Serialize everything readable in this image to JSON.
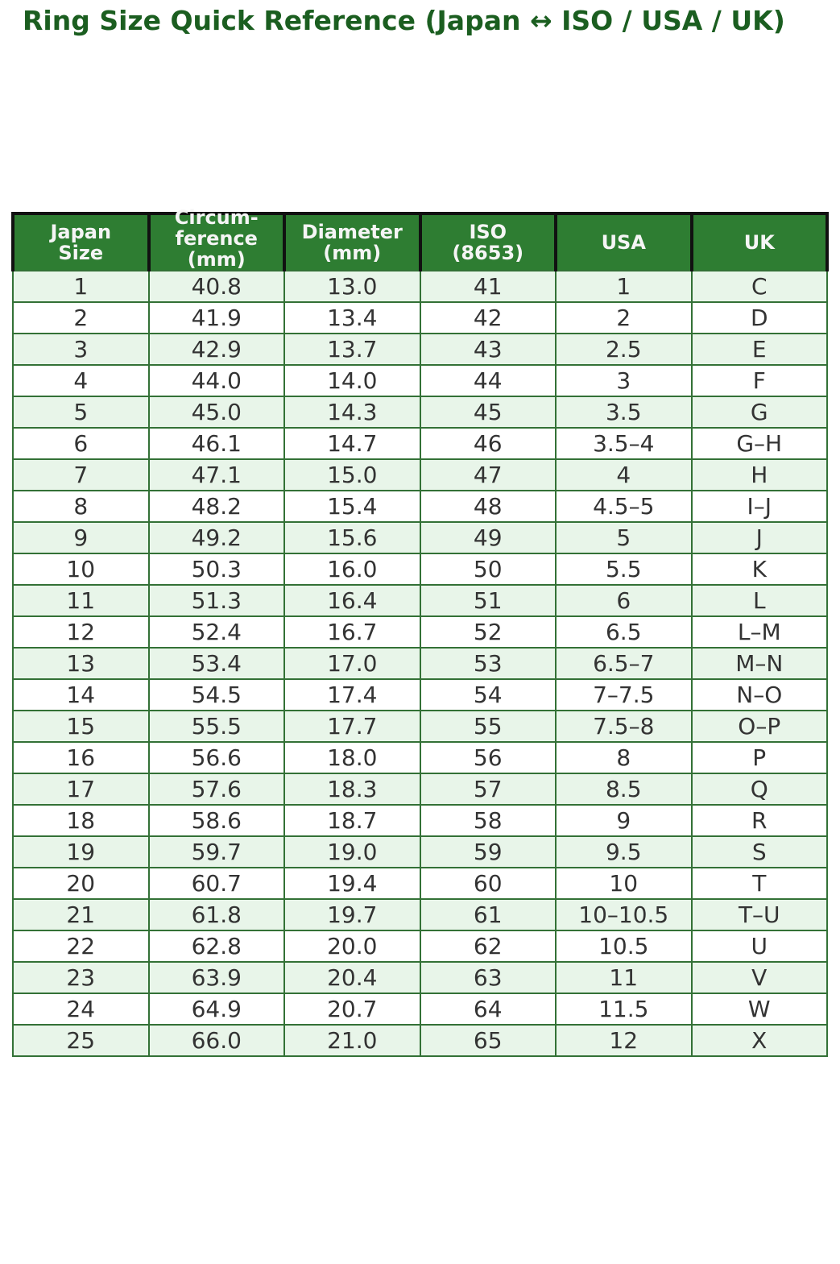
{
  "title": "Ring Size Quick Reference (Japan ↔ ISO / USA / UK)",
  "colors": {
    "title_text": "#1b5e20",
    "header_bg": "#2e7d32",
    "header_text": "#f5f5f5",
    "header_border": "#111111",
    "body_border": "#337136",
    "row_alt_bg": "#e8f5e9",
    "row_plain_bg": "#ffffff",
    "cell_text": "#333333"
  },
  "chart_data": {
    "type": "table",
    "title": "Ring Size Quick Reference (Japan ↔ ISO / USA / UK)",
    "columns": [
      "Japan Size",
      "Circum-ference (mm)",
      "Diameter (mm)",
      "ISO (8653)",
      "USA",
      "UK"
    ],
    "header_lines": [
      [
        "Japan",
        "Size"
      ],
      [
        "Circum-",
        "ference",
        "(mm)"
      ],
      [
        "Diameter",
        "(mm)"
      ],
      [
        "ISO",
        "(8653)"
      ],
      [
        "USA"
      ],
      [
        "UK"
      ]
    ],
    "rows": [
      [
        "1",
        "40.8",
        "13.0",
        "41",
        "1",
        "C"
      ],
      [
        "2",
        "41.9",
        "13.4",
        "42",
        "2",
        "D"
      ],
      [
        "3",
        "42.9",
        "13.7",
        "43",
        "2.5",
        "E"
      ],
      [
        "4",
        "44.0",
        "14.0",
        "44",
        "3",
        "F"
      ],
      [
        "5",
        "45.0",
        "14.3",
        "45",
        "3.5",
        "G"
      ],
      [
        "6",
        "46.1",
        "14.7",
        "46",
        "3.5–4",
        "G–H"
      ],
      [
        "7",
        "47.1",
        "15.0",
        "47",
        "4",
        "H"
      ],
      [
        "8",
        "48.2",
        "15.4",
        "48",
        "4.5–5",
        "I–J"
      ],
      [
        "9",
        "49.2",
        "15.6",
        "49",
        "5",
        "J"
      ],
      [
        "10",
        "50.3",
        "16.0",
        "50",
        "5.5",
        "K"
      ],
      [
        "11",
        "51.3",
        "16.4",
        "51",
        "6",
        "L"
      ],
      [
        "12",
        "52.4",
        "16.7",
        "52",
        "6.5",
        "L–M"
      ],
      [
        "13",
        "53.4",
        "17.0",
        "53",
        "6.5–7",
        "M–N"
      ],
      [
        "14",
        "54.5",
        "17.4",
        "54",
        "7–7.5",
        "N–O"
      ],
      [
        "15",
        "55.5",
        "17.7",
        "55",
        "7.5–8",
        "O–P"
      ],
      [
        "16",
        "56.6",
        "18.0",
        "56",
        "8",
        "P"
      ],
      [
        "17",
        "57.6",
        "18.3",
        "57",
        "8.5",
        "Q"
      ],
      [
        "18",
        "58.6",
        "18.7",
        "58",
        "9",
        "R"
      ],
      [
        "19",
        "59.7",
        "19.0",
        "59",
        "9.5",
        "S"
      ],
      [
        "20",
        "60.7",
        "19.4",
        "60",
        "10",
        "T"
      ],
      [
        "21",
        "61.8",
        "19.7",
        "61",
        "10–10.5",
        "T–U"
      ],
      [
        "22",
        "62.8",
        "20.0",
        "62",
        "10.5",
        "U"
      ],
      [
        "23",
        "63.9",
        "20.4",
        "63",
        "11",
        "V"
      ],
      [
        "24",
        "64.9",
        "20.7",
        "64",
        "11.5",
        "W"
      ],
      [
        "25",
        "66.0",
        "21.0",
        "65",
        "12",
        "X"
      ]
    ]
  }
}
